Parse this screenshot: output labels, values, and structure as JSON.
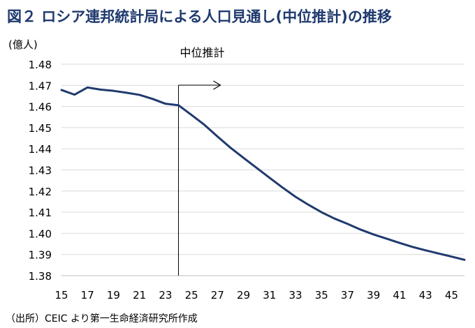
{
  "title": "図２ ロシア連邦統計局による人口見通し(中位推計)の推移",
  "source": "（出所）CEIC より第一生命経済研究所作成",
  "chart_data": {
    "type": "line",
    "title": "図２ ロシア連邦統計局による人口見通し(中位推計)の推移",
    "ylabel": "(億人)",
    "xlabel": "",
    "ylim": [
      1.38,
      1.48
    ],
    "xlim": [
      15,
      46
    ],
    "grid": true,
    "line_color": "#1f3a6e",
    "y_ticks": [
      "1.48",
      "1.47",
      "1.46",
      "1.45",
      "1.44",
      "1.43",
      "1.42",
      "1.41",
      "1.40",
      "1.39",
      "1.38"
    ],
    "x_ticks": [
      "15",
      "17",
      "19",
      "21",
      "23",
      "25",
      "27",
      "29",
      "31",
      "33",
      "35",
      "37",
      "39",
      "41",
      "43",
      "45"
    ],
    "annotation": {
      "text": "中位推計",
      "x": 24
    },
    "series": [
      {
        "name": "",
        "x": [
          15,
          16,
          17,
          18,
          19,
          20,
          21,
          22,
          23,
          24,
          25,
          26,
          27,
          28,
          29,
          30,
          31,
          32,
          33,
          34,
          35,
          36,
          37,
          38,
          39,
          40,
          41,
          42,
          43,
          44,
          45,
          46
        ],
        "values": [
          1.4678,
          1.4656,
          1.469,
          1.468,
          1.4674,
          1.4665,
          1.4655,
          1.4636,
          1.4613,
          1.4606,
          1.456,
          1.4513,
          1.4458,
          1.4405,
          1.4357,
          1.431,
          1.4263,
          1.4217,
          1.4173,
          1.4135,
          1.41,
          1.407,
          1.4045,
          1.4018,
          1.3995,
          1.3975,
          1.3955,
          1.3936,
          1.392,
          1.3905,
          1.389,
          1.3875
        ]
      }
    ]
  }
}
